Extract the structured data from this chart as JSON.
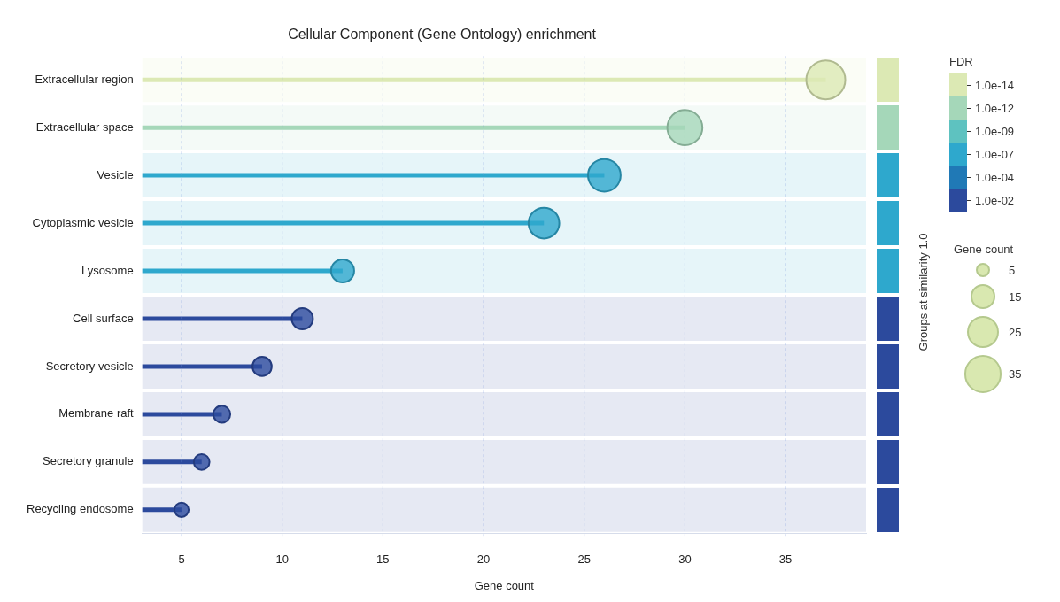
{
  "chart_data": {
    "type": "lollipop",
    "orientation": "horizontal",
    "title": "Cellular Component (Gene Ontology) enrichment",
    "xlabel": "Gene count",
    "categories": [
      "Extracellular region",
      "Extracellular space",
      "Vesicle",
      "Cytoplasmic vesicle",
      "Lysosome",
      "Cell surface",
      "Secretory vesicle",
      "Membrane raft",
      "Secretory granule",
      "Recycling endosome"
    ],
    "series": [
      {
        "name": "1.0e-14",
        "color": "#dce9b4",
        "values": [
          37,
          null,
          null,
          null,
          null,
          null,
          null,
          null,
          null,
          null
        ],
        "sizes": [
          37,
          null,
          null,
          null,
          null,
          null,
          null,
          null,
          null,
          null
        ]
      },
      {
        "name": "1.0e-12",
        "color": "#a5d7b9",
        "values": [
          null,
          30,
          null,
          null,
          null,
          null,
          null,
          null,
          null,
          null
        ],
        "sizes": [
          null,
          30,
          null,
          null,
          null,
          null,
          null,
          null,
          null,
          null
        ]
      },
      {
        "name": "1.0e-09",
        "color": "#5ec2c0",
        "values": [
          null,
          null,
          null,
          null,
          null,
          null,
          null,
          null,
          null,
          null
        ],
        "sizes": [
          null,
          null,
          null,
          null,
          null,
          null,
          null,
          null,
          null,
          null
        ]
      },
      {
        "name": "1.0e-07",
        "color": "#2ea8cd",
        "values": [
          null,
          null,
          26,
          23,
          13,
          null,
          null,
          null,
          null,
          null
        ],
        "sizes": [
          null,
          null,
          26,
          23,
          13,
          null,
          null,
          null,
          null,
          null
        ]
      },
      {
        "name": "1.0e-04",
        "color": "#2079b6",
        "values": [
          null,
          null,
          null,
          null,
          null,
          null,
          null,
          null,
          null,
          null
        ],
        "sizes": [
          null,
          null,
          null,
          null,
          null,
          null,
          null,
          null,
          null,
          null
        ]
      },
      {
        "name": "1.0e-02",
        "color": "#2c4a9d",
        "values": [
          null,
          null,
          null,
          null,
          null,
          11,
          9,
          7,
          6,
          5
        ],
        "sizes": [
          null,
          null,
          null,
          null,
          null,
          11,
          9,
          7,
          6,
          5
        ]
      }
    ],
    "size_legend": [
      5,
      15,
      25,
      35
    ],
    "legend_title": "FDR",
    "legend": "right",
    "xlim": [
      3.05,
      39
    ],
    "xticks": [
      5,
      10,
      15,
      20,
      25,
      30,
      35
    ],
    "grid": "x",
    "bands": [
      {
        "axis": "y",
        "from": "Extracellular region",
        "to": "Extracellular region",
        "color": "#fbfdf6"
      },
      {
        "axis": "y",
        "from": "Extracellular space",
        "to": "Extracellular space",
        "color": "#f4faf7"
      },
      {
        "axis": "y",
        "from": "Vesicle",
        "to": "Vesicle",
        "color": "#e6f5f9"
      },
      {
        "axis": "y",
        "from": "Cytoplasmic vesicle",
        "to": "Cytoplasmic vesicle",
        "color": "#e6f5f9"
      },
      {
        "axis": "y",
        "from": "Lysosome",
        "to": "Lysosome",
        "color": "#e6f5f9"
      },
      {
        "axis": "y",
        "from": "Cell surface",
        "to": "Cell surface",
        "color": "#e6e9f3"
      },
      {
        "axis": "y",
        "from": "Secretory vesicle",
        "to": "Secretory vesicle",
        "color": "#e6e9f3"
      },
      {
        "axis": "y",
        "from": "Membrane raft",
        "to": "Membrane raft",
        "color": "#e6e9f3"
      },
      {
        "axis": "y",
        "from": "Secretory granule",
        "to": "Secretory granule",
        "color": "#e6e9f3"
      },
      {
        "axis": "y",
        "from": "Recycling endosome",
        "to": "Recycling endosome",
        "color": "#e6e9f3"
      }
    ],
    "annotations": [
      "Gene count",
      "Groups at similarity 1.0"
    ]
  }
}
